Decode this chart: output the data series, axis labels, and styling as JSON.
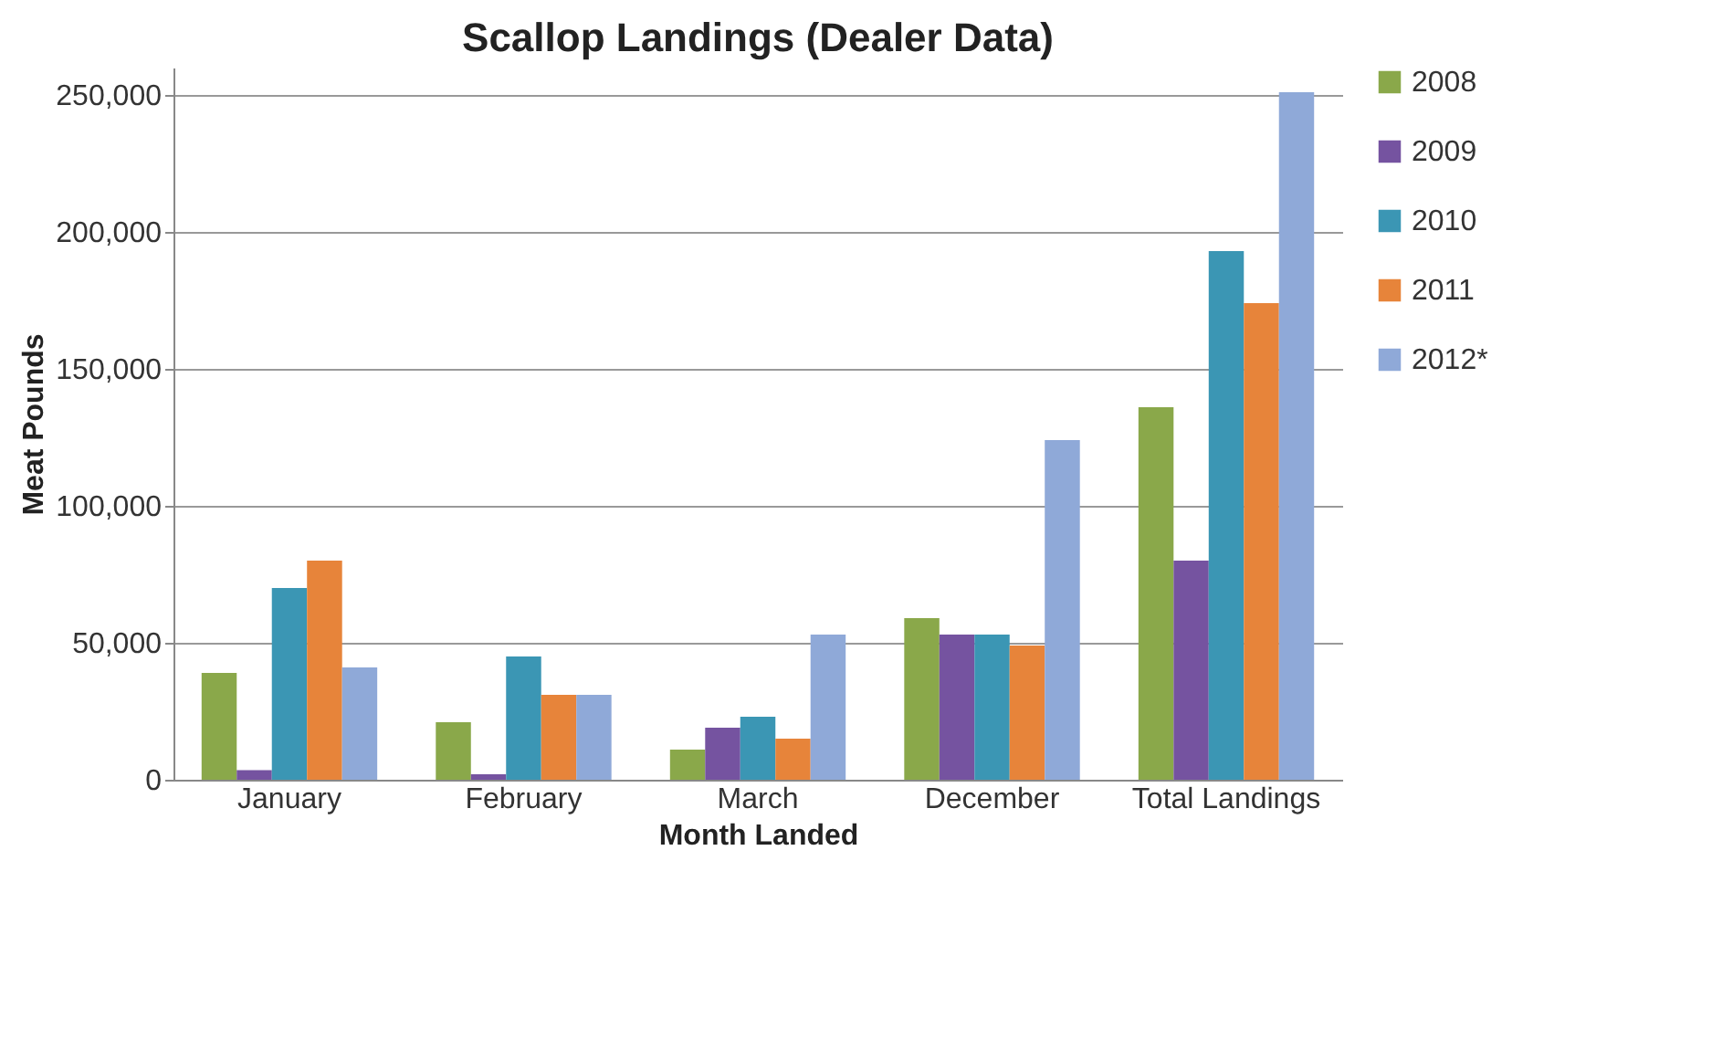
{
  "chart_data": {
    "type": "bar",
    "title": "Scallop Landings  (Dealer Data)",
    "xlabel": "Month Landed",
    "ylabel": "Meat Pounds",
    "categories": [
      "January",
      "February",
      "March",
      "December",
      "Total Landings"
    ],
    "series": [
      {
        "name": "2008",
        "color": "#8aa84a",
        "values": [
          39000,
          21000,
          11000,
          59000,
          136000
        ]
      },
      {
        "name": "2009",
        "color": "#7553a0",
        "values": [
          3500,
          2000,
          19000,
          53000,
          80000
        ]
      },
      {
        "name": "2010",
        "color": "#3b96b4",
        "values": [
          70000,
          45000,
          23000,
          53000,
          193000
        ]
      },
      {
        "name": "2011",
        "color": "#e7843a",
        "values": [
          80000,
          31000,
          15000,
          49000,
          174000
        ]
      },
      {
        "name": "2012*",
        "color": "#8fa9d8",
        "values": [
          41000,
          31000,
          53000,
          124000,
          251000
        ]
      }
    ],
    "ylim": [
      0,
      260000
    ],
    "yticks": [
      0,
      {
        "value": 50000,
        "label": "50,000"
      },
      {
        "value": 100000,
        "label": "100,000"
      },
      {
        "value": 150000,
        "label": "150,000"
      },
      {
        "value": 200000,
        "label": "200,000"
      },
      {
        "value": 250000,
        "label": "250,000"
      }
    ],
    "grid": "y",
    "legend": "right"
  }
}
